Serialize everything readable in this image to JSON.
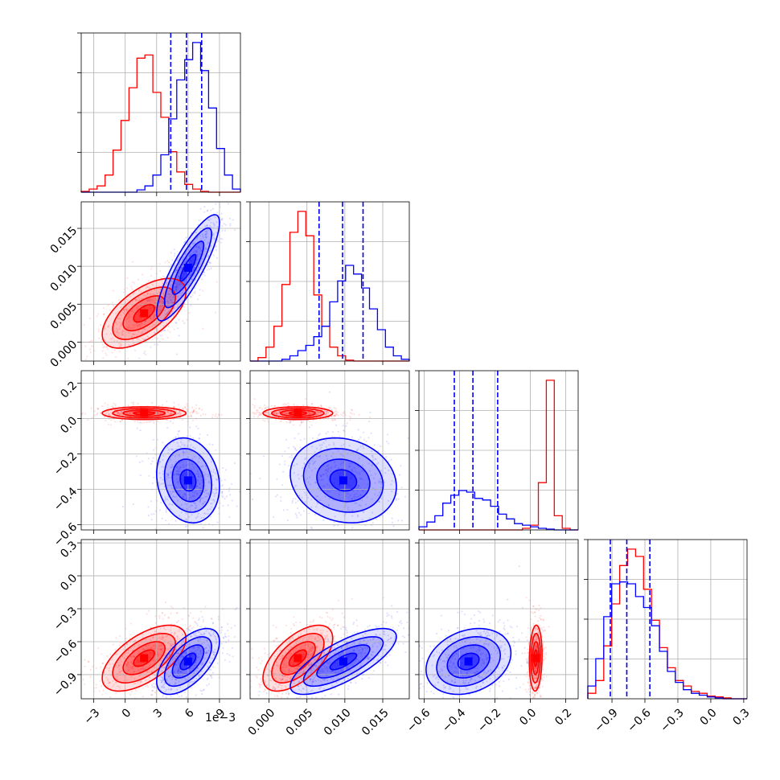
{
  "chart_data": {
    "type": "corner",
    "title": "",
    "colors": {
      "series_a": "#ff0000",
      "series_b": "#0000ff",
      "grid": "#b0b0b0",
      "axis": "#000000"
    },
    "series": [
      {
        "name": "red",
        "color": "#ff0000"
      },
      {
        "name": "blue",
        "color": "#0000ff"
      }
    ],
    "parameters": [
      {
        "range": [
          -4.2,
          11.0
        ],
        "ticks": [
          -3,
          0,
          3,
          6,
          9
        ],
        "tick_labels": [
          "−3",
          "0",
          "3",
          "6",
          "9"
        ],
        "offset_text": "1e−3"
      },
      {
        "range": [
          -0.0025,
          0.0185
        ],
        "ticks": [
          0.0,
          0.005,
          0.01,
          0.015
        ],
        "tick_labels": [
          "0.000",
          "0.005",
          "0.010",
          "0.015"
        ]
      },
      {
        "range": [
          -0.63,
          0.27
        ],
        "ticks": [
          -0.6,
          -0.4,
          -0.2,
          0.0,
          0.2
        ],
        "tick_labels": [
          "−0.6",
          "−0.4",
          "−0.2",
          "0.0",
          "0.2"
        ]
      },
      {
        "range": [
          -1.12,
          0.33
        ],
        "ticks": [
          -0.9,
          -0.6,
          -0.3,
          0.0,
          0.3
        ],
        "tick_labels": [
          "−0.9",
          "−0.6",
          "−0.3",
          "0.0",
          "0.3"
        ]
      }
    ],
    "marginals": [
      {
        "bin_start": -4.2,
        "bin_width": 0.76,
        "red": [
          0.005,
          0.02,
          0.04,
          0.11,
          0.27,
          0.46,
          0.67,
          0.86,
          0.88,
          0.64,
          0.48,
          0.26,
          0.13,
          0.05,
          0.02,
          0.005,
          0,
          0,
          0,
          0
        ],
        "blue": [
          0,
          0,
          0,
          0,
          0,
          0,
          0,
          0.015,
          0.04,
          0.11,
          0.24,
          0.47,
          0.72,
          0.85,
          0.96,
          0.78,
          0.54,
          0.28,
          0.11,
          0.02
        ],
        "quantiles_blue": [
          4.35,
          5.85,
          7.3
        ]
      },
      {
        "bin_start": -0.0025,
        "bin_width": 0.00105,
        "red": [
          0,
          0.02,
          0.08,
          0.2,
          0.44,
          0.74,
          0.86,
          0.72,
          0.38,
          0.2,
          0.08,
          0.03,
          0.005,
          0,
          0,
          0,
          0,
          0,
          0,
          0
        ],
        "blue": [
          0,
          0,
          0,
          0,
          0.01,
          0.03,
          0.06,
          0.09,
          0.14,
          0.2,
          0.34,
          0.46,
          0.55,
          0.5,
          0.42,
          0.3,
          0.18,
          0.08,
          0.03,
          0.01
        ],
        "quantiles_blue": [
          0.0066,
          0.0097,
          0.0124
        ]
      },
      {
        "bin_start": -0.63,
        "bin_width": 0.045,
        "red": [
          0,
          0,
          0,
          0,
          0,
          0,
          0,
          0,
          0,
          0,
          0,
          0,
          0,
          0.01,
          0.03,
          0.3,
          0.95,
          0.09,
          0.01,
          0
        ],
        "blue": [
          0.02,
          0.05,
          0.09,
          0.17,
          0.22,
          0.25,
          0.24,
          0.2,
          0.19,
          0.15,
          0.1,
          0.07,
          0.04,
          0.03,
          0.02,
          0.01,
          0.005,
          0,
          0,
          0
        ],
        "quantiles_blue": [
          -0.43,
          -0.325,
          -0.185
        ]
      },
      {
        "bin_start": -1.12,
        "bin_width": 0.0725,
        "red": [
          0.03,
          0.1,
          0.29,
          0.52,
          0.73,
          0.82,
          0.78,
          0.6,
          0.43,
          0.28,
          0.17,
          0.1,
          0.07,
          0.04,
          0.03,
          0.015,
          0.01,
          0.005,
          0,
          0
        ],
        "blue": [
          0.07,
          0.22,
          0.45,
          0.63,
          0.64,
          0.63,
          0.56,
          0.5,
          0.4,
          0.26,
          0.15,
          0.09,
          0.05,
          0.03,
          0.02,
          0.01,
          0.005,
          0,
          0,
          0
        ],
        "quantiles_blue": [
          -0.915,
          -0.765,
          -0.555
        ]
      }
    ],
    "joint": {
      "red": {
        "mean": [
          1.8,
          0.0038,
          0.03,
          -0.75
        ],
        "sd": [
          2.0,
          0.0023,
          0.018,
          0.15
        ],
        "corr": [
          [
            1,
            0.6,
            0,
            0.6
          ],
          [
            0.6,
            1,
            0,
            0.6
          ],
          [
            0,
            0,
            1,
            0.1
          ],
          [
            0.6,
            0.6,
            0.1,
            1
          ]
        ]
      },
      "blue": {
        "mean": [
          6.0,
          0.0098,
          -0.35,
          -0.78
        ],
        "sd": [
          1.5,
          0.0035,
          0.12,
          0.15
        ],
        "corr": [
          [
            1,
            0.85,
            -0.15,
            0.6
          ],
          [
            0.85,
            1,
            -0.15,
            0.75
          ],
          [
            -0.15,
            -0.15,
            1,
            0.25
          ],
          [
            0.6,
            0.75,
            0.25,
            1
          ]
        ]
      },
      "contour_levels_sigma": [
        0.5,
        1.0,
        1.5,
        2.0
      ]
    }
  }
}
